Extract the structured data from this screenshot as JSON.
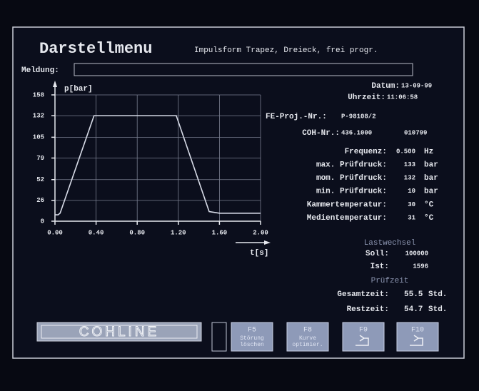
{
  "header": {
    "title": "Darstellmenu",
    "subtitle": "Impulsform Trapez, Dreieck, frei progr."
  },
  "message": {
    "label": "Meldung:"
  },
  "chart_data": {
    "type": "line",
    "y_label": "p[bar]",
    "x_label": "t[s]",
    "x": [
      0,
      0.03,
      0.05,
      0.38,
      1.18,
      1.5,
      1.6,
      2.0
    ],
    "series": [
      {
        "color": "#d8dce8",
        "values": [
          8,
          8,
          10,
          132,
          132,
          12,
          10,
          10
        ]
      }
    ],
    "xlim": [
      0,
      2.0
    ],
    "xticks": [
      {
        "value": 0,
        "label": "0.00"
      },
      {
        "value": 0.4,
        "label": "0.40"
      },
      {
        "value": 0.8,
        "label": "0.80"
      },
      {
        "value": 1.2,
        "label": "1.20"
      },
      {
        "value": 1.6,
        "label": "1.60"
      },
      {
        "value": 2.0,
        "label": "2.00"
      }
    ],
    "ylim": [
      0,
      158
    ],
    "yticks": [
      0,
      26,
      52,
      79,
      105,
      132,
      158
    ],
    "grid": true
  },
  "info": {
    "date": {
      "label": "Datum:",
      "value": "13-09-99"
    },
    "time": {
      "label": "Uhrzeit:",
      "value": "11:06:58"
    },
    "project": {
      "label": "FE-Proj.-Nr.:",
      "value": "P-98108/2"
    },
    "coh": {
      "label": "COH-Nr.:",
      "value": "436.1000",
      "extra": "010799"
    }
  },
  "parameters": [
    {
      "label": "Frequenz:",
      "value": "0.500",
      "unit": "Hz"
    },
    {
      "label": "max. Prüfdruck:",
      "value": "133",
      "unit": "bar"
    },
    {
      "label": "mom. Prüfdruck:",
      "value": "132",
      "unit": "bar"
    },
    {
      "label": "min. Prüfdruck:",
      "value": "10",
      "unit": "bar"
    },
    {
      "label": "Kammertemperatur:",
      "value": "30",
      "unit": "°C"
    },
    {
      "label": "Medientemperatur:",
      "value": "31",
      "unit": "°C"
    }
  ],
  "load_cycles": {
    "title": "Lastwechsel",
    "rows": [
      {
        "label": "Soll:",
        "value": "100000"
      },
      {
        "label": "Ist:",
        "value": "1596"
      }
    ]
  },
  "test_time": {
    "title": "Prüfzeit",
    "rows": [
      {
        "label": "Gesamtzeit:",
        "value": "55.5",
        "unit": "Std."
      },
      {
        "label": "Restzeit:",
        "value": "54.7",
        "unit": "Std."
      }
    ]
  },
  "logo": "COHLINE",
  "buttons": [
    {
      "key": "F5",
      "lines": [
        "Störung",
        "löschen"
      ]
    },
    {
      "key": "F8",
      "lines": [
        "Kurve",
        "optimier."
      ]
    },
    {
      "key": "F9"
    },
    {
      "key": "F10"
    }
  ]
}
